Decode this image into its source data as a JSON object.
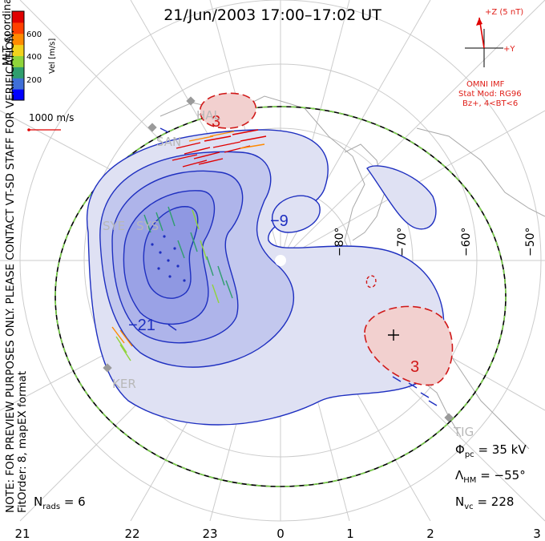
{
  "title": "21/Jun/2003 17:00–17:02 UT",
  "side_note_lines": [
    "NOTE: FOR PREVIEW PURPOSES ONLY. PLEASE CONTACT VT-SD STAFF FOR VERIFICATION.",
    "FitOrder: 8, mapEX format"
  ],
  "coordinates_label": "MLT coordinates",
  "colorbar": {
    "label": "Vel [m/s]",
    "ticks": [
      "600",
      "400",
      "200"
    ],
    "colors": [
      "#0000ff",
      "#3f6fd8",
      "#2f9e6e",
      "#8fd43a",
      "#f2d21b",
      "#ff8a00",
      "#ff4000",
      "#e00000"
    ]
  },
  "vector_scale": {
    "label": "1000 m/s",
    "color": "#e0201a"
  },
  "imf": {
    "z_label": "+Z (5 nT)",
    "y_label": "+Y",
    "source": "OMNI IMF",
    "model_line1": "Stat Mod: RG96",
    "model_line2": "Bz+, 4<BT<6",
    "color": "#e0201a"
  },
  "stats": {
    "phi_symbol": "Φ",
    "phi_sub": "pc",
    "phi_value": "= 35 kV",
    "lambda_symbol": "Λ",
    "lambda_sub": "HM",
    "lambda_value": "= −55°",
    "nvc_symbol": "N",
    "nvc_sub": "vc",
    "nvc_value": "= 228",
    "nrads_symbol": "N",
    "nrads_sub": "rads",
    "nrads_value": "= 6"
  },
  "mlt_ticks": [
    "21",
    "22",
    "23",
    "0",
    "1",
    "2",
    "3"
  ],
  "latitude_labels": [
    "−80°",
    "−70°",
    "−60°",
    "−50°"
  ],
  "contour_labels": {
    "neg21": "−21",
    "neg9": "−9",
    "pos3_top": "3",
    "pos3_right": "3"
  },
  "radars": [
    "HAL",
    "SAN",
    "SYE",
    "SYS",
    "KER",
    "TIG"
  ],
  "colors": {
    "negative_fill": "#c3c8ee",
    "negative_deep": "#8f98e2",
    "negative_line": "#1e2fc0",
    "positive_fill": "#f2d0cf",
    "positive_line": "#d01818",
    "boundary_green": "#7ad04a",
    "grid": "#c9c9c9"
  }
}
